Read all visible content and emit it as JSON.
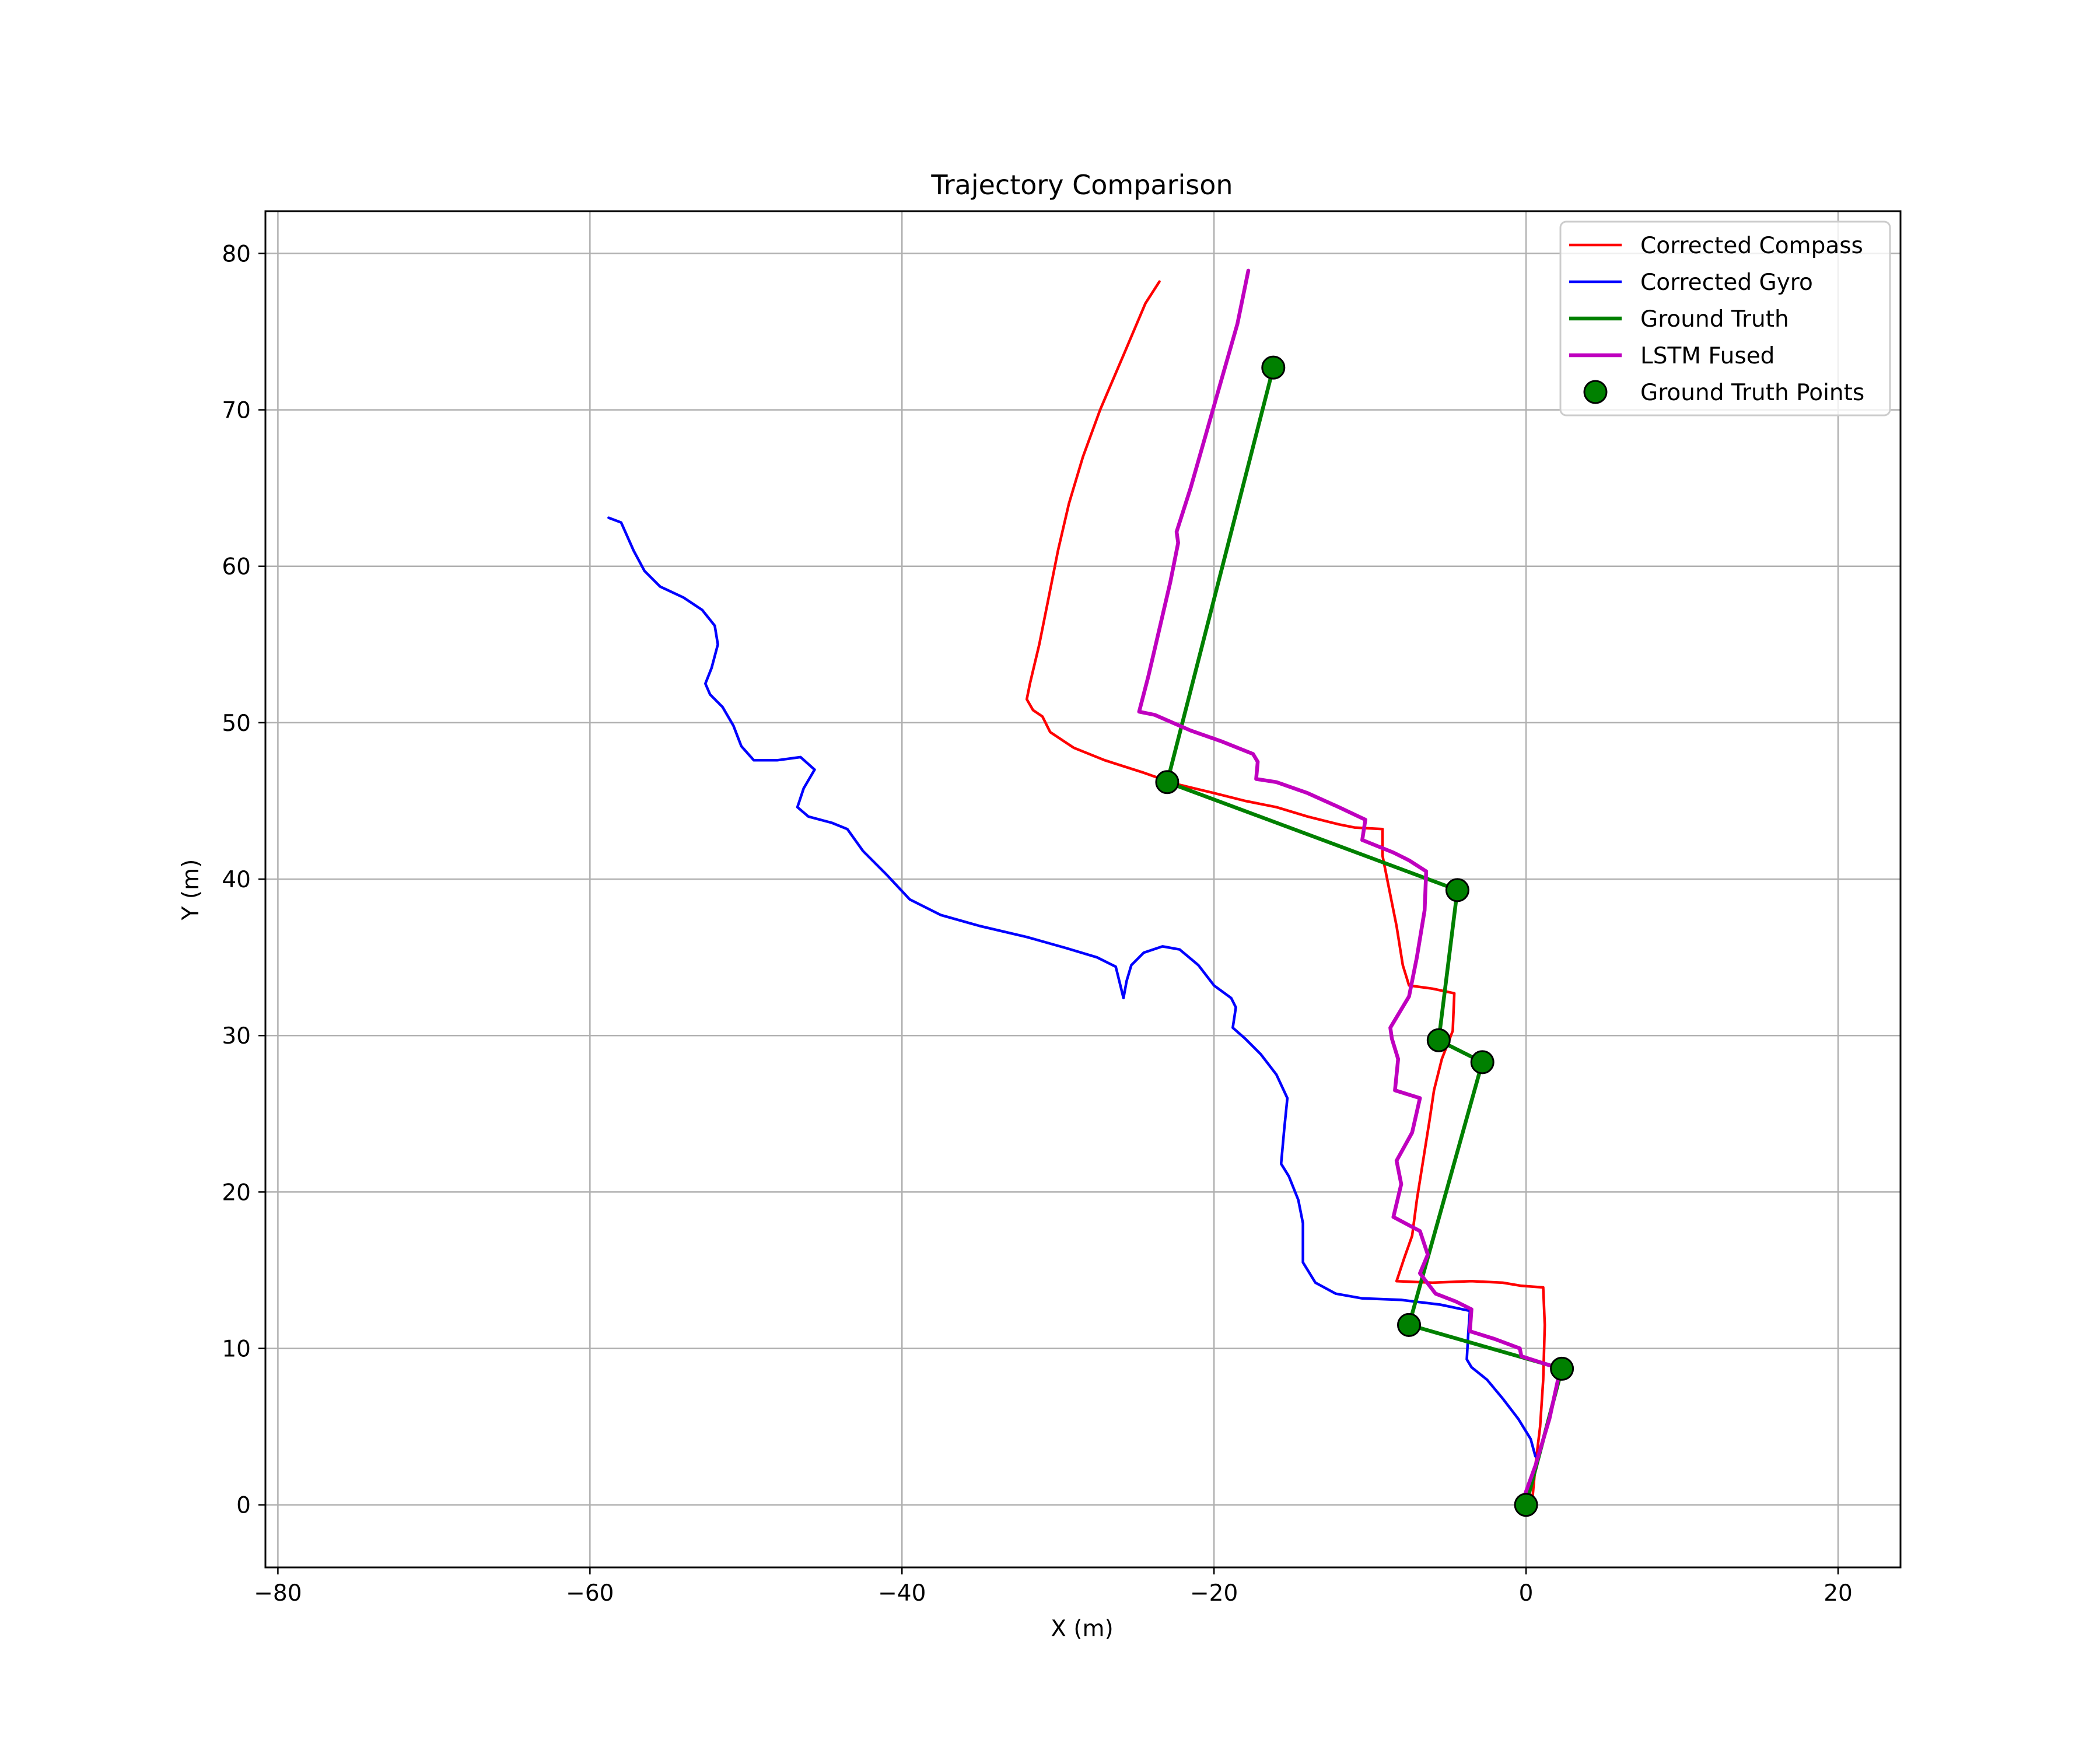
{
  "chart_data": {
    "type": "line",
    "title": "Trajectory Comparison",
    "xlabel": "X (m)",
    "ylabel": "Y (m)",
    "xlim": [
      -80.8,
      24.0
    ],
    "ylim": [
      -4.0,
      82.7
    ],
    "x_ticks": [
      -80,
      -60,
      -40,
      -20,
      0,
      20
    ],
    "y_ticks": [
      0,
      10,
      20,
      30,
      40,
      50,
      60,
      70,
      80
    ],
    "x_tick_labels": [
      "−80",
      "−60",
      "−40",
      "−20",
      "0",
      "20"
    ],
    "y_tick_labels": [
      "0",
      "10",
      "20",
      "30",
      "40",
      "50",
      "60",
      "70",
      "80"
    ],
    "grid": true,
    "legend_position": "top-right",
    "series": [
      {
        "name": "Corrected Compass",
        "color": "#ff0000",
        "points": [
          [
            0.4,
            0.3
          ],
          [
            0.6,
            2.5
          ],
          [
            0.9,
            5.0
          ],
          [
            1.1,
            8.0
          ],
          [
            1.2,
            11.5
          ],
          [
            1.1,
            13.9
          ],
          [
            -0.3,
            14.0
          ],
          [
            -1.5,
            14.2
          ],
          [
            -3.5,
            14.3
          ],
          [
            -6.0,
            14.2
          ],
          [
            -8.3,
            14.3
          ],
          [
            -7.8,
            15.8
          ],
          [
            -7.3,
            17.2
          ],
          [
            -7.0,
            19.5
          ],
          [
            -6.6,
            22.0
          ],
          [
            -6.2,
            24.5
          ],
          [
            -5.9,
            26.5
          ],
          [
            -5.4,
            28.5
          ],
          [
            -4.7,
            30.3
          ],
          [
            -4.6,
            32.7
          ],
          [
            -6.0,
            33.0
          ],
          [
            -7.5,
            33.2
          ],
          [
            -7.9,
            34.5
          ],
          [
            -8.3,
            37.0
          ],
          [
            -8.8,
            39.5
          ],
          [
            -9.2,
            41.5
          ],
          [
            -9.2,
            43.2
          ],
          [
            -11.0,
            43.3
          ],
          [
            -12.0,
            43.5
          ],
          [
            -14.0,
            44.0
          ],
          [
            -16.0,
            44.6
          ],
          [
            -18.0,
            45.0
          ],
          [
            -20.0,
            45.5
          ],
          [
            -22.5,
            46.1
          ],
          [
            -24.5,
            46.8
          ],
          [
            -27.0,
            47.6
          ],
          [
            -29.0,
            48.4
          ],
          [
            -30.5,
            49.4
          ],
          [
            -31.0,
            50.4
          ],
          [
            -31.6,
            50.8
          ],
          [
            -32.0,
            51.5
          ],
          [
            -31.8,
            52.5
          ],
          [
            -31.2,
            55.0
          ],
          [
            -30.6,
            58.0
          ],
          [
            -30.0,
            61.0
          ],
          [
            -29.3,
            64.0
          ],
          [
            -28.4,
            67.0
          ],
          [
            -27.3,
            70.0
          ],
          [
            -25.8,
            73.5
          ],
          [
            -24.4,
            76.8
          ],
          [
            -23.5,
            78.2
          ]
        ]
      },
      {
        "name": "Corrected Gyro",
        "color": "#0000ff",
        "points": [
          [
            0.6,
            3.1
          ],
          [
            0.3,
            4.2
          ],
          [
            -0.5,
            5.5
          ],
          [
            -1.5,
            6.8
          ],
          [
            -2.5,
            8.0
          ],
          [
            -3.5,
            8.8
          ],
          [
            -3.8,
            9.3
          ],
          [
            -3.7,
            11.0
          ],
          [
            -3.6,
            12.4
          ],
          [
            -5.5,
            12.8
          ],
          [
            -8.0,
            13.1
          ],
          [
            -10.5,
            13.2
          ],
          [
            -12.2,
            13.5
          ],
          [
            -13.5,
            14.2
          ],
          [
            -14.3,
            15.5
          ],
          [
            -14.3,
            18.0
          ],
          [
            -14.6,
            19.5
          ],
          [
            -15.2,
            21.0
          ],
          [
            -15.7,
            21.8
          ],
          [
            -15.5,
            24.0
          ],
          [
            -15.3,
            26.0
          ],
          [
            -16.0,
            27.5
          ],
          [
            -17.0,
            28.8
          ],
          [
            -18.0,
            29.8
          ],
          [
            -18.8,
            30.5
          ],
          [
            -18.6,
            31.8
          ],
          [
            -18.9,
            32.4
          ],
          [
            -20.0,
            33.2
          ],
          [
            -21.0,
            34.5
          ],
          [
            -22.2,
            35.5
          ],
          [
            -23.3,
            35.7
          ],
          [
            -24.5,
            35.3
          ],
          [
            -25.3,
            34.5
          ],
          [
            -25.6,
            33.5
          ],
          [
            -25.8,
            32.4
          ],
          [
            -26.3,
            34.4
          ],
          [
            -27.5,
            35.0
          ],
          [
            -29.5,
            35.6
          ],
          [
            -32.0,
            36.3
          ],
          [
            -35.0,
            37.0
          ],
          [
            -37.5,
            37.7
          ],
          [
            -39.5,
            38.7
          ],
          [
            -41.0,
            40.3
          ],
          [
            -42.5,
            41.8
          ],
          [
            -43.5,
            43.2
          ],
          [
            -44.5,
            43.6
          ],
          [
            -46.0,
            44.0
          ],
          [
            -46.7,
            44.6
          ],
          [
            -46.3,
            45.8
          ],
          [
            -45.6,
            47.0
          ],
          [
            -46.5,
            47.8
          ],
          [
            -48.0,
            47.6
          ],
          [
            -49.5,
            47.6
          ],
          [
            -50.3,
            48.5
          ],
          [
            -50.8,
            49.8
          ],
          [
            -51.5,
            51.0
          ],
          [
            -52.3,
            51.8
          ],
          [
            -52.6,
            52.5
          ],
          [
            -52.2,
            53.5
          ],
          [
            -51.8,
            55.0
          ],
          [
            -52.0,
            56.2
          ],
          [
            -52.8,
            57.2
          ],
          [
            -54.0,
            58.0
          ],
          [
            -55.5,
            58.7
          ],
          [
            -56.5,
            59.7
          ],
          [
            -57.2,
            61.0
          ],
          [
            -58.0,
            62.8
          ],
          [
            -58.8,
            63.1
          ]
        ]
      },
      {
        "name": "Ground Truth",
        "color": "#008000",
        "points": [
          [
            0.0,
            0.0
          ],
          [
            2.3,
            8.7
          ],
          [
            -7.5,
            11.5
          ],
          [
            -2.8,
            28.3
          ],
          [
            -5.6,
            29.7
          ],
          [
            -4.4,
            39.3
          ],
          [
            -23.0,
            46.2
          ],
          [
            -16.2,
            72.7
          ]
        ]
      },
      {
        "name": "LSTM Fused",
        "color": "#bf00bf",
        "points": [
          [
            -0.2,
            0.3
          ],
          [
            0.6,
            2.5
          ],
          [
            1.5,
            5.5
          ],
          [
            2.2,
            8.7
          ],
          [
            -0.3,
            9.5
          ],
          [
            -0.4,
            10.0
          ],
          [
            -2.0,
            10.6
          ],
          [
            -3.6,
            11.1
          ],
          [
            -3.5,
            12.5
          ],
          [
            -4.5,
            13.0
          ],
          [
            -5.8,
            13.5
          ],
          [
            -6.8,
            14.8
          ],
          [
            -6.3,
            16.0
          ],
          [
            -6.8,
            17.5
          ],
          [
            -8.5,
            18.4
          ],
          [
            -8.0,
            20.5
          ],
          [
            -8.3,
            22.0
          ],
          [
            -7.3,
            23.8
          ],
          [
            -6.8,
            26.0
          ],
          [
            -8.4,
            26.5
          ],
          [
            -8.2,
            28.5
          ],
          [
            -8.6,
            29.8
          ],
          [
            -8.7,
            30.5
          ],
          [
            -7.5,
            32.5
          ],
          [
            -7.0,
            35.0
          ],
          [
            -6.5,
            38.0
          ],
          [
            -6.4,
            40.5
          ],
          [
            -7.5,
            41.2
          ],
          [
            -8.5,
            41.7
          ],
          [
            -10.5,
            42.5
          ],
          [
            -10.3,
            43.8
          ],
          [
            -12.0,
            44.6
          ],
          [
            -14.0,
            45.5
          ],
          [
            -16.0,
            46.2
          ],
          [
            -17.3,
            46.4
          ],
          [
            -17.2,
            47.5
          ],
          [
            -17.5,
            48.0
          ],
          [
            -19.5,
            48.8
          ],
          [
            -21.5,
            49.5
          ],
          [
            -23.8,
            50.5
          ],
          [
            -24.8,
            50.7
          ],
          [
            -24.2,
            53.0
          ],
          [
            -23.5,
            56.0
          ],
          [
            -22.8,
            59.0
          ],
          [
            -22.3,
            61.5
          ],
          [
            -22.4,
            62.2
          ],
          [
            -21.5,
            65.0
          ],
          [
            -20.5,
            68.5
          ],
          [
            -19.5,
            72.0
          ],
          [
            -18.5,
            75.5
          ],
          [
            -17.8,
            78.9
          ]
        ]
      },
      {
        "name": "Ground Truth Points",
        "type": "scatter",
        "color": "#008000",
        "edge_color": "#000000",
        "points": [
          [
            0.0,
            0.0
          ],
          [
            2.3,
            8.7
          ],
          [
            -7.5,
            11.5
          ],
          [
            -2.8,
            28.3
          ],
          [
            -5.6,
            29.7
          ],
          [
            -4.4,
            39.3
          ],
          [
            -23.0,
            46.2
          ],
          [
            -16.2,
            72.7
          ]
        ]
      }
    ]
  }
}
